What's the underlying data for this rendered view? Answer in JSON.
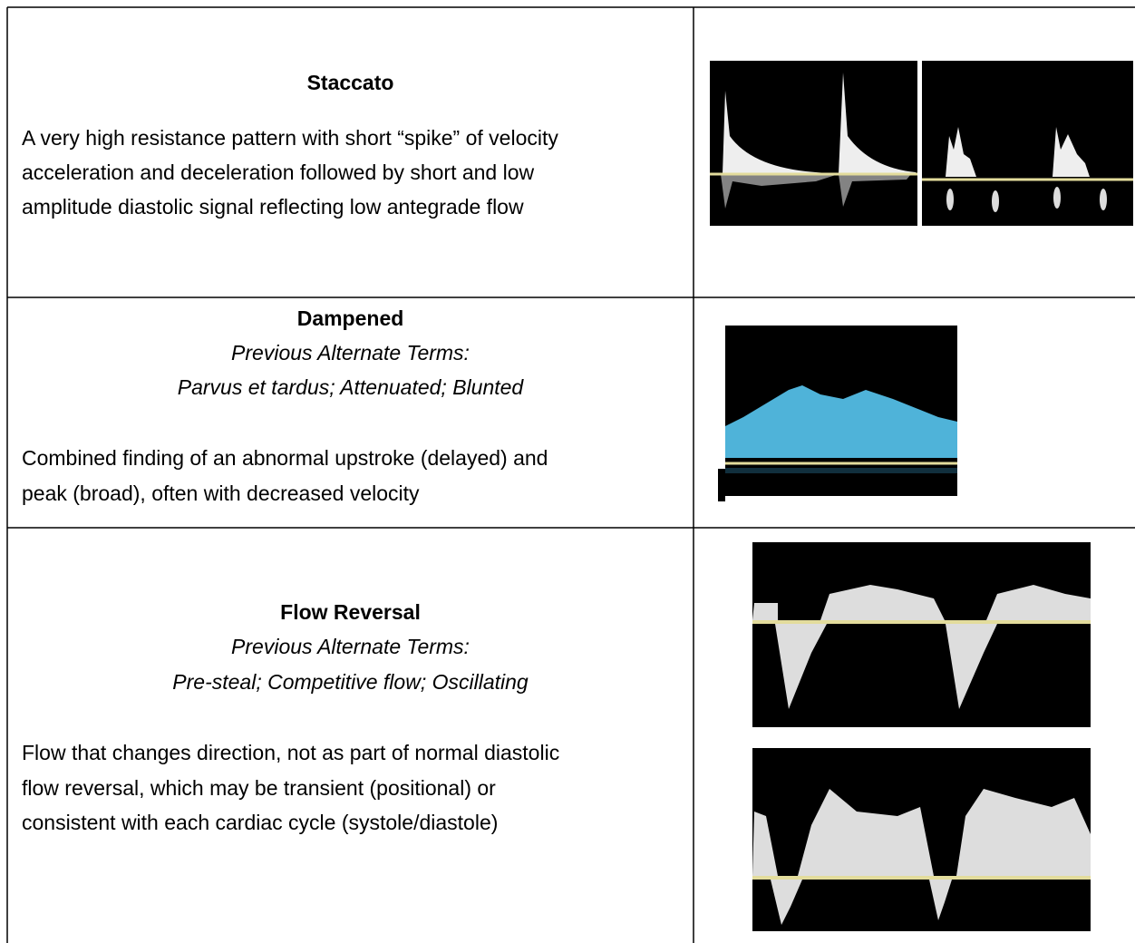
{
  "table": {
    "rows": [
      {
        "title": "Staccato",
        "description": [
          "A very high resistance pattern with short “spike” of velocity",
          "acceleration and deceleration followed by short and low",
          "amplitude diastolic signal reflecting low antegrade flow"
        ]
      },
      {
        "title": "Dampened",
        "alt_terms": [
          "Previous Alternate Terms:",
          "Parvus et tardus; Attenuated; Blunted"
        ],
        "description": [
          "Combined finding of an abnormal upstroke (delayed) and",
          "peak (broad), often with decreased velocity"
        ]
      },
      {
        "title": "Flow Reversal",
        "alt_terms": [
          "Previous Alternate Terms:",
          "Pre-steal; Competitive flow; Oscillating"
        ],
        "description": [
          "Flow that changes direction, not as part of normal diastolic",
          "flow reversal, which may be transient (positional) or",
          "consistent with each cardiac cycle (systole/diastole)"
        ]
      }
    ]
  }
}
